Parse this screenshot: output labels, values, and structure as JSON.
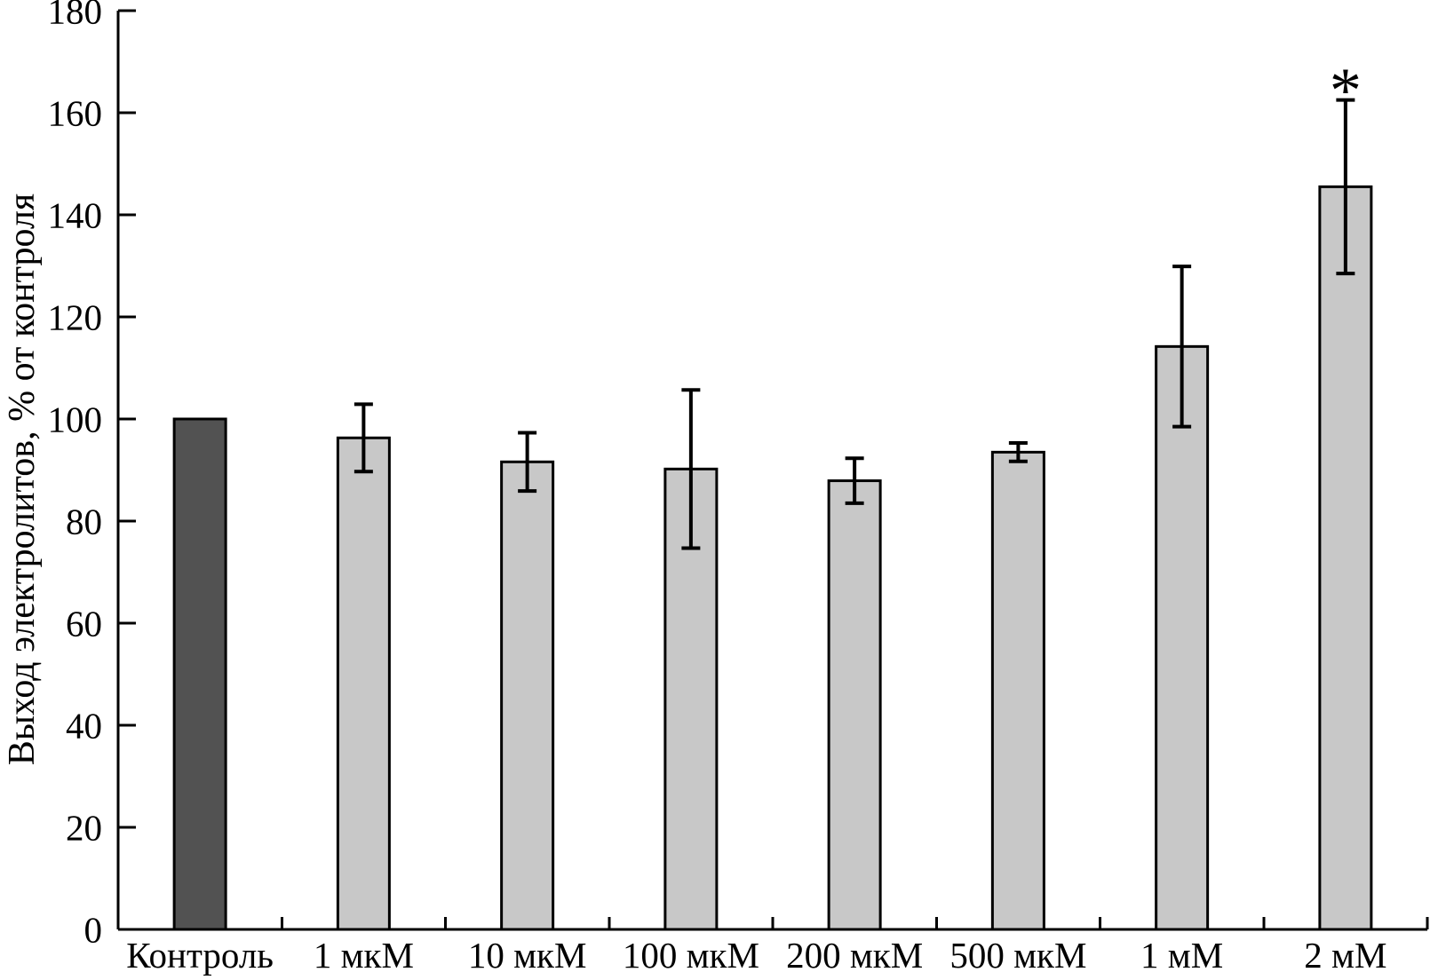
{
  "chart_data": {
    "type": "bar",
    "ylabel": "Выход электролитов, % от контроля",
    "xlabel": "",
    "ylim": [
      0,
      180
    ],
    "yticks": [
      0,
      20,
      40,
      60,
      80,
      100,
      120,
      140,
      160,
      180
    ],
    "grid": false,
    "legend_position": "none",
    "categories": [
      "Контроль",
      "1 мкМ",
      "10 мкМ",
      "100 мкМ",
      "200 мкМ",
      "500 мкМ",
      "1 мМ",
      "2 мМ"
    ],
    "values": [
      100,
      96.3,
      91.6,
      90.2,
      87.9,
      93.5,
      114.2,
      145.5
    ],
    "errors": [
      0,
      6.6,
      5.7,
      15.5,
      4.4,
      1.8,
      15.7,
      17.0
    ],
    "significance": [
      {
        "category_index": 7,
        "symbol": "*"
      }
    ],
    "bar_colors": [
      "#525252",
      "#c8c8c8",
      "#c8c8c8",
      "#c8c8c8",
      "#c8c8c8",
      "#c8c8c8",
      "#c8c8c8",
      "#c8c8c8"
    ],
    "bar_border_color": "#000000",
    "error_bar_color": "#000000",
    "axis_color": "#000000",
    "background_color": "#ffffff"
  }
}
